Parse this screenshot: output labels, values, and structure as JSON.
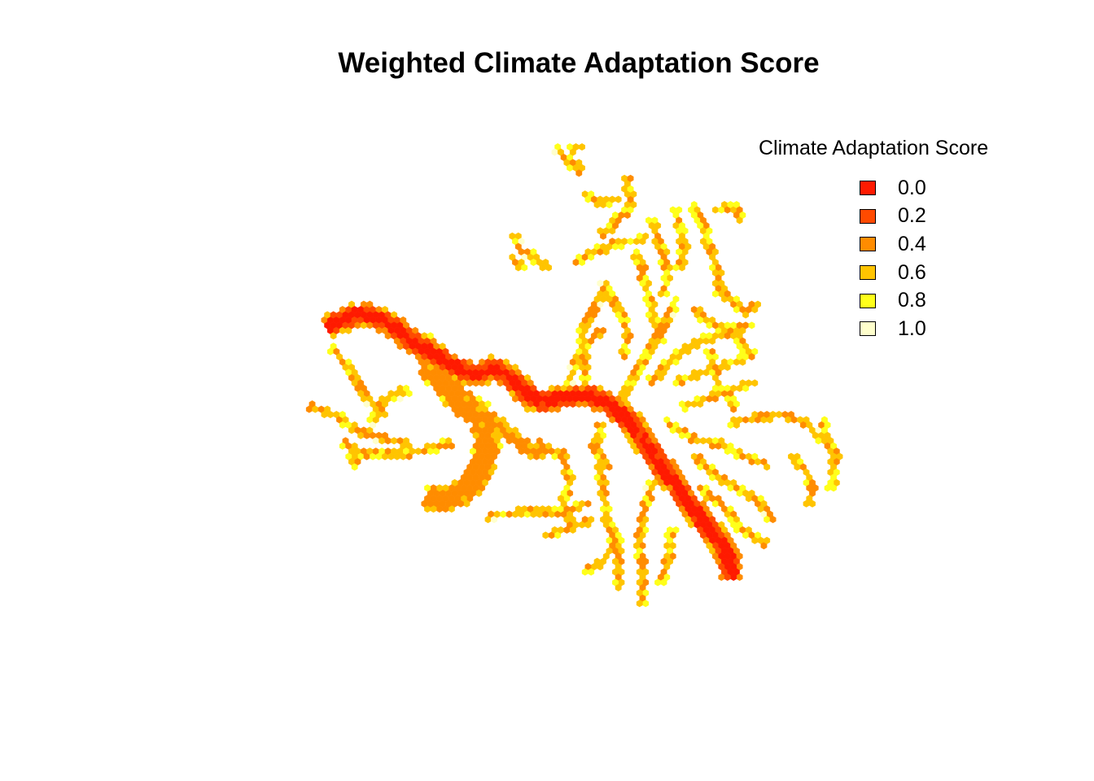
{
  "title": "Weighted Climate Adaptation Score",
  "legend": {
    "title": "Climate Adaptation Score",
    "items": [
      {
        "label": "0.0",
        "color": "#ff1a00"
      },
      {
        "label": "0.2",
        "color": "#ff4a00"
      },
      {
        "label": "0.4",
        "color": "#ff8c00"
      },
      {
        "label": "0.6",
        "color": "#ffc400"
      },
      {
        "label": "0.8",
        "color": "#ffff1a"
      },
      {
        "label": "1.0",
        "color": "#ffffcc"
      }
    ]
  },
  "map": {
    "type": "hexbin-choropleth",
    "value_range": [
      0,
      1
    ],
    "palette": [
      "#ff1a00",
      "#ff4a00",
      "#ff8c00",
      "#ffc400",
      "#ffff1a",
      "#ffffcc"
    ]
  }
}
